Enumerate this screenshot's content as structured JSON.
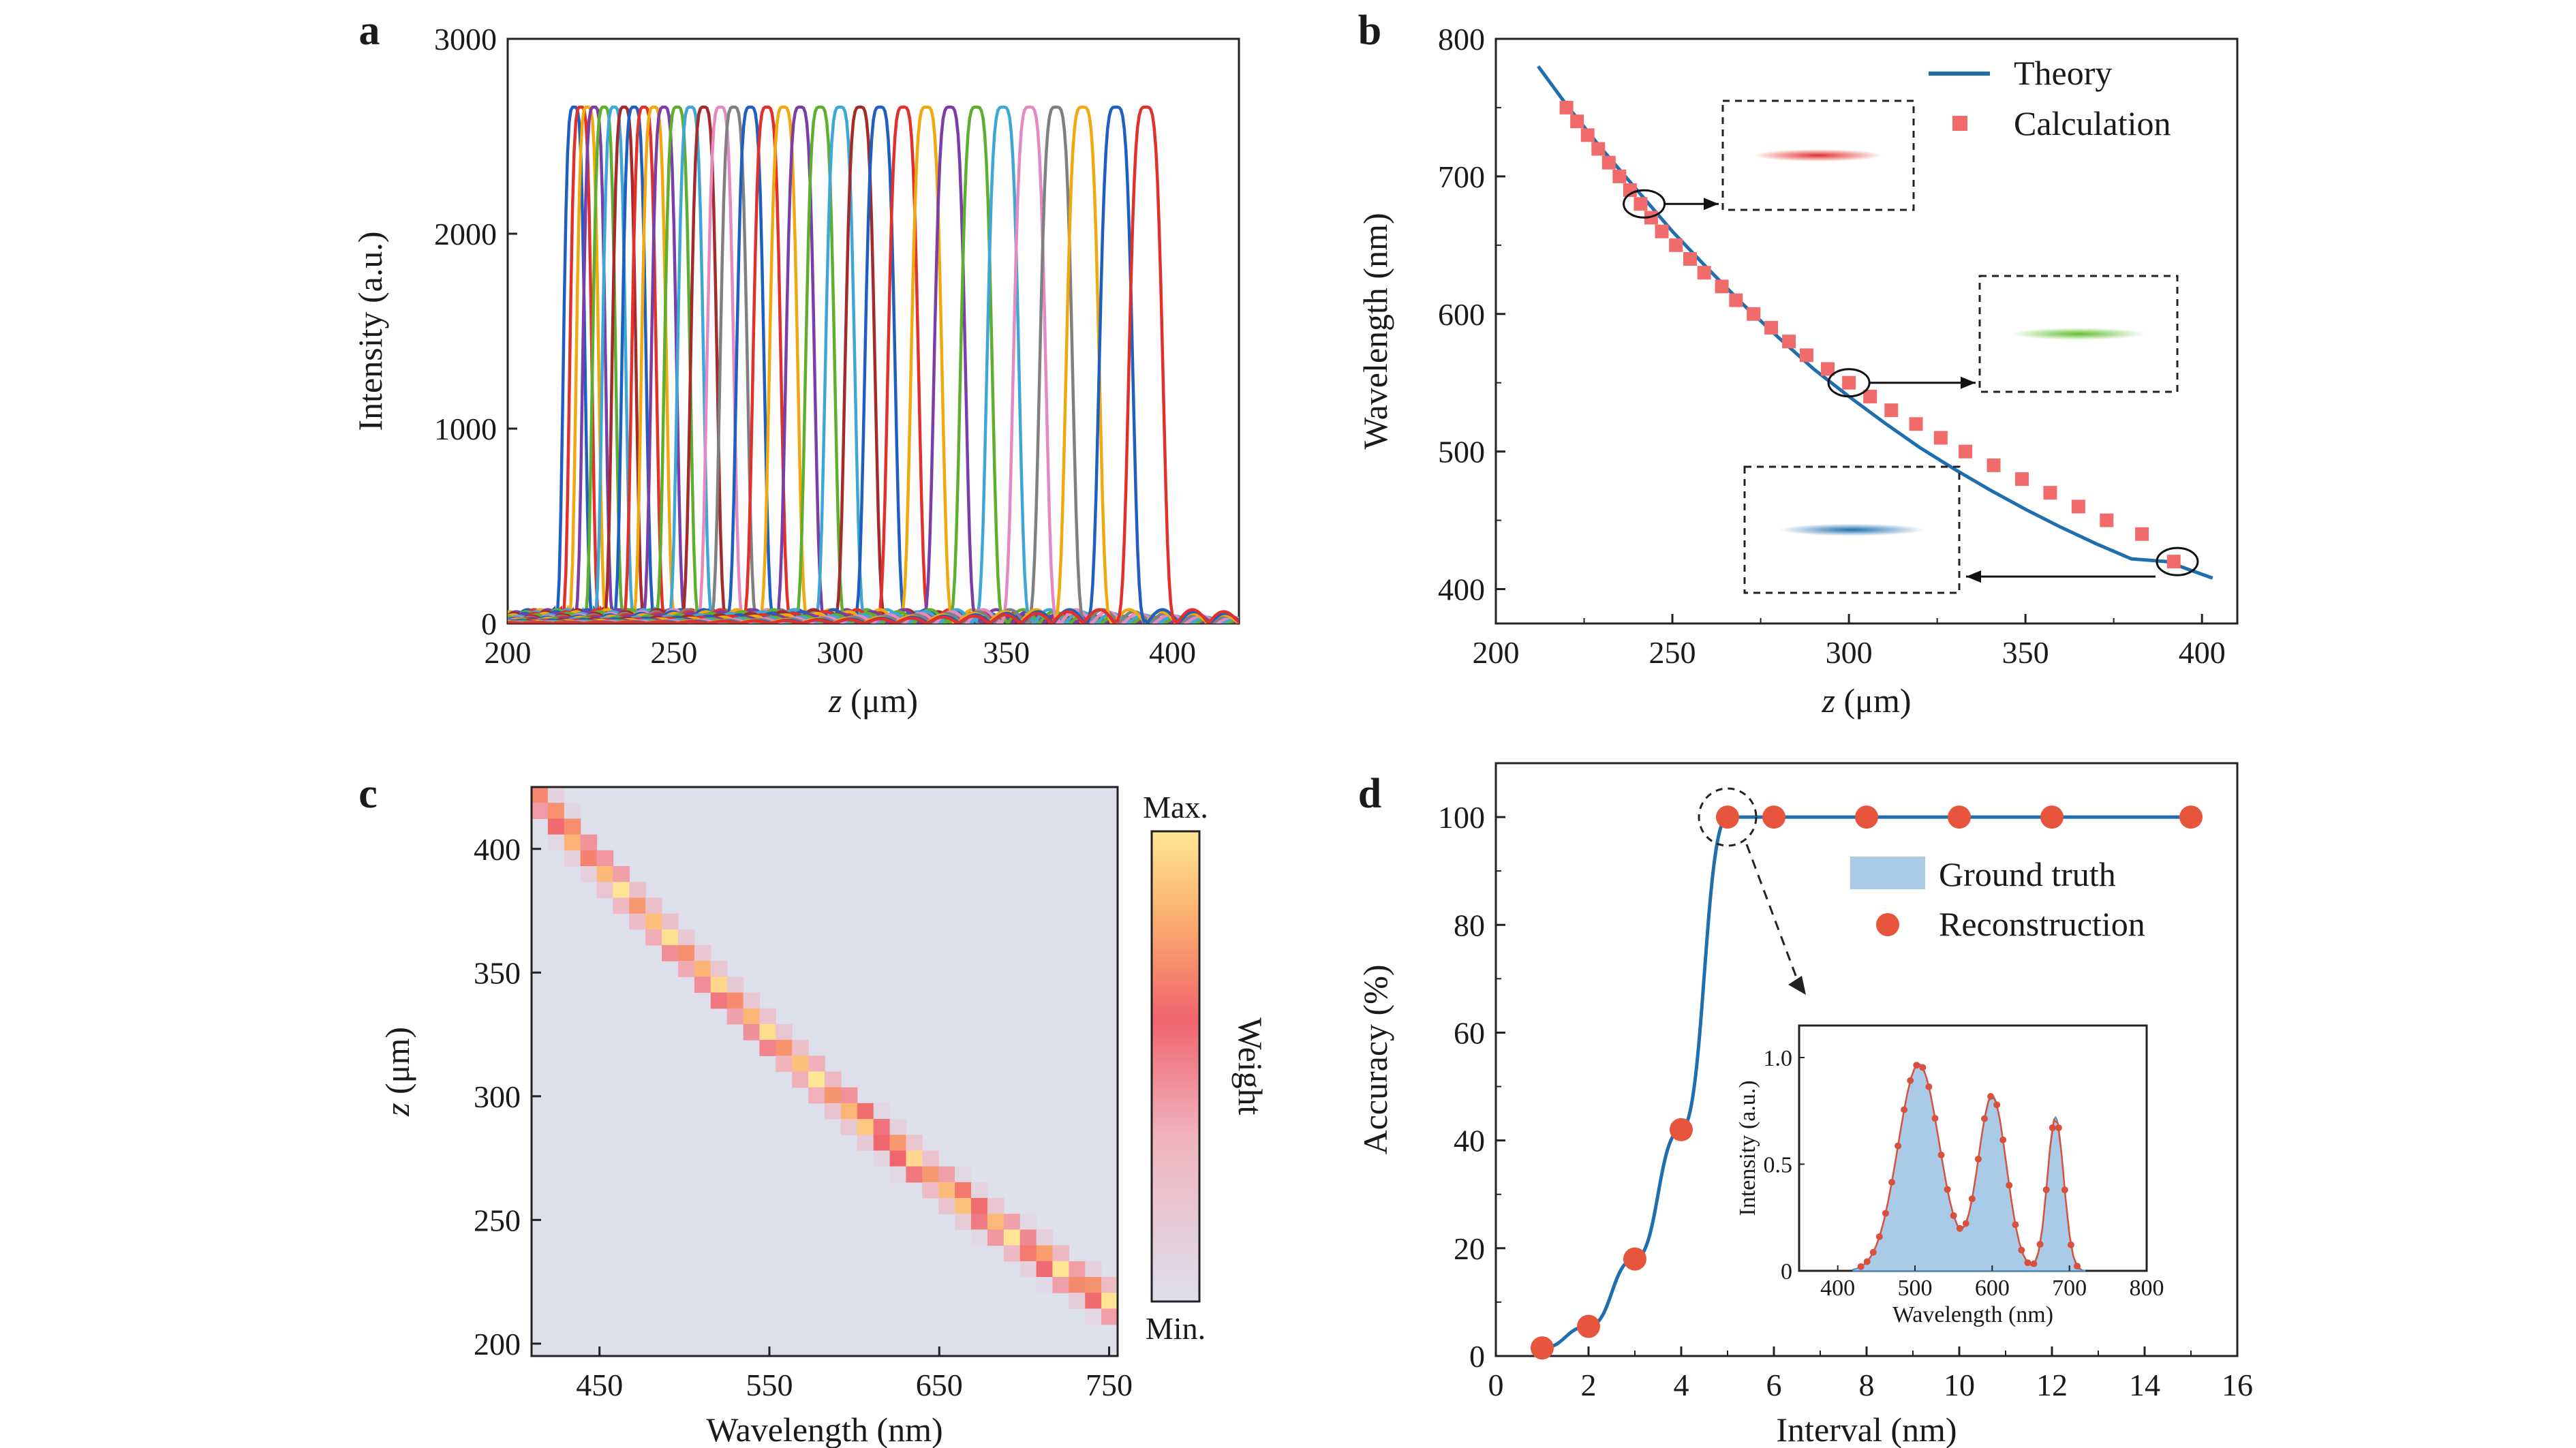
{
  "chart_data": [
    {
      "panel": "a",
      "type": "line",
      "xlabel": "z (μm)",
      "ylabel": "Intensity (a.u.)",
      "xlim": [
        200,
        420
      ],
      "ylim": [
        0,
        3000
      ],
      "xticks": [
        200,
        250,
        300,
        350,
        400
      ],
      "yticks": [
        0,
        1000,
        2000,
        3000
      ],
      "series_peaks_z": [
        220,
        222,
        224,
        226,
        229,
        232,
        235,
        238,
        241,
        244,
        247,
        251,
        255,
        259,
        264,
        268,
        273,
        278,
        283,
        288,
        294,
        300,
        306,
        312,
        319,
        326,
        333,
        341,
        349,
        357,
        365,
        373,
        383,
        392
      ],
      "peak_intensity": 2650,
      "colors": [
        "#1f5fbf",
        "#e0312c",
        "#f0a90f",
        "#7a3ea6",
        "#5fae2f",
        "#3fa7d6",
        "#a32b2b",
        "#1f5fbf",
        "#e0312c",
        "#f0a90f",
        "#7a3ea6",
        "#5fae2f",
        "#3fa7d6",
        "#a32b2b",
        "#e48ac0",
        "#808080",
        "#1f5fbf",
        "#e0312c",
        "#f0a90f",
        "#7a3ea6",
        "#5fae2f",
        "#3fa7d6",
        "#a32b2b",
        "#1f5fbf",
        "#e0312c",
        "#f0a90f",
        "#7a3ea6",
        "#5fae2f",
        "#3fa7d6",
        "#e48ac0",
        "#808080",
        "#f0a90f",
        "#1f5fbf",
        "#e0312c"
      ]
    },
    {
      "panel": "b",
      "type": "line",
      "xlabel": "z (μm)",
      "ylabel": "Wavelength (nm)",
      "xlim": [
        200,
        410
      ],
      "ylim": [
        375,
        800
      ],
      "xticks": [
        200,
        250,
        300,
        350,
        400
      ],
      "yticks": [
        400,
        500,
        600,
        700,
        800
      ],
      "series": [
        {
          "name": "Theory",
          "color": "#1f6fae",
          "x": [
            212,
            220,
            230,
            240,
            250,
            260,
            270,
            280,
            290,
            300,
            310,
            320,
            330,
            340,
            350,
            360,
            370,
            380,
            390,
            403
          ],
          "y": [
            780,
            752,
            720,
            690,
            660,
            633,
            607,
            583,
            560,
            540,
            521,
            503,
            487,
            472,
            458,
            445,
            433,
            422,
            420,
            408
          ]
        },
        {
          "name": "Calculation",
          "color": "#f26b6b",
          "x": [
            220,
            223,
            226,
            229,
            232,
            235,
            238,
            241,
            244,
            247,
            251,
            255,
            259,
            264,
            268,
            273,
            278,
            283,
            288,
            294,
            300,
            306,
            312,
            319,
            326,
            333,
            341,
            349,
            357,
            365,
            373,
            383,
            392
          ],
          "y": [
            750,
            740,
            730,
            720,
            710,
            700,
            690,
            680,
            670,
            660,
            650,
            640,
            630,
            620,
            610,
            600,
            590,
            580,
            570,
            560,
            550,
            540,
            530,
            520,
            510,
            500,
            490,
            480,
            470,
            460,
            450,
            440,
            420
          ]
        }
      ],
      "highlighted": [
        {
          "z": 242,
          "wl": 680,
          "color": "#e0312c"
        },
        {
          "z": 300,
          "wl": 550,
          "color": "#5fbf2f"
        },
        {
          "z": 393,
          "wl": 420,
          "color": "#1f6fae"
        }
      ]
    },
    {
      "panel": "c",
      "type": "heatmap",
      "xlabel": "Wavelength (nm)",
      "ylabel": "z (μm)",
      "xlim": [
        410,
        755
      ],
      "ylim": [
        195,
        425
      ],
      "xticks": [
        450,
        550,
        650,
        750
      ],
      "yticks": [
        200,
        250,
        300,
        350,
        400
      ],
      "colorbar_label": "Weight",
      "colorbar_max": "Max.",
      "colorbar_min": "Min."
    },
    {
      "panel": "d",
      "type": "line",
      "xlabel": "Interval (nm)",
      "ylabel": "Accuracy (%)",
      "xlim": [
        0,
        16
      ],
      "ylim": [
        0,
        110
      ],
      "xticks": [
        0,
        2,
        4,
        6,
        8,
        10,
        12,
        14,
        16
      ],
      "yticks": [
        0,
        20,
        40,
        60,
        80,
        100
      ],
      "x": [
        1,
        2,
        3,
        4,
        5,
        6,
        8,
        10,
        12,
        15
      ],
      "y": [
        1.5,
        5.5,
        18,
        42,
        100,
        100,
        100,
        100,
        100,
        100
      ],
      "legend": [
        {
          "name": "Ground truth",
          "color": "#a9cbe8"
        },
        {
          "name": "Reconstruction",
          "color": "#e8553d"
        }
      ],
      "inset": {
        "xlabel": "Wavelength (nm)",
        "ylabel": "Intensity (a.u.)",
        "xlim": [
          350,
          800
        ],
        "ylim": [
          0,
          1.15
        ],
        "xticks": [
          400,
          500,
          600,
          700,
          800
        ],
        "yticks": [
          0,
          0.5,
          1.0
        ],
        "ytick_labels": [
          "0",
          "0.5",
          "1.0"
        ]
      }
    }
  ],
  "labels": {
    "a": "a",
    "b": "b",
    "c": "c",
    "d": "d"
  }
}
